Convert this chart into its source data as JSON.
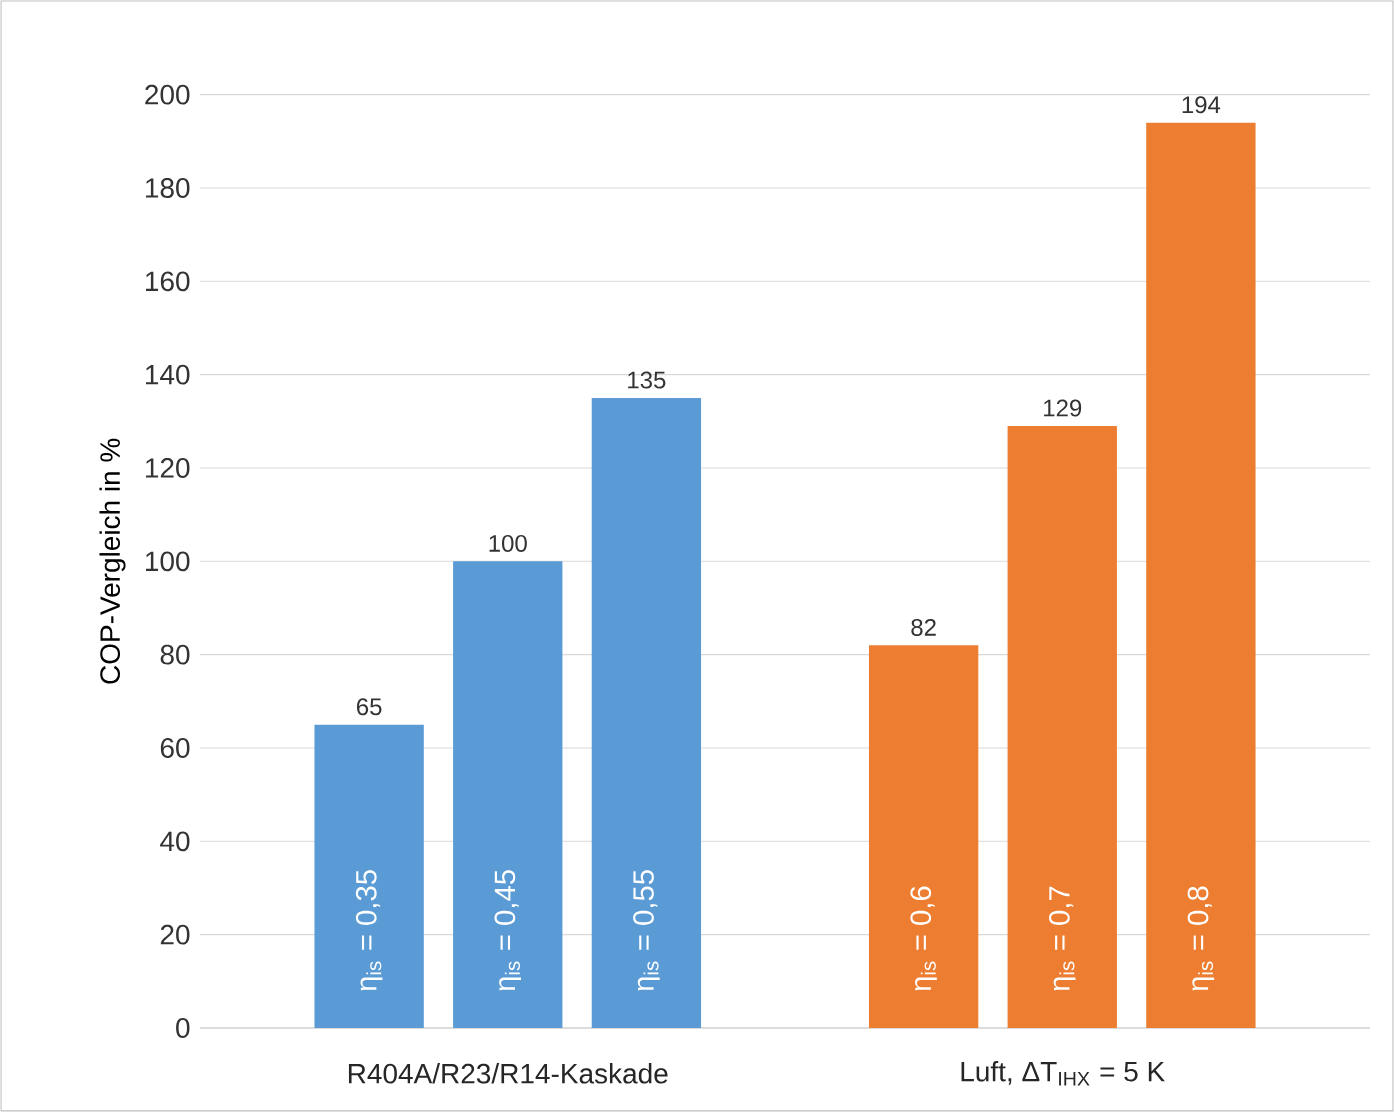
{
  "chart_data": {
    "type": "bar",
    "ylabel": "COP-Vergleich in %",
    "categories": [
      "η$_{is}$ = 0,35",
      "η$_{is}$ = 0,45",
      "η$_{is}$ = 0,55",
      null,
      "η$_{is}$ = 0,6",
      "η$_{is}$ = 0,7",
      "η$_{is}$ = 0,8"
    ],
    "values": [
      65,
      100,
      135,
      null,
      82,
      129,
      194
    ],
    "colors": [
      "#5b9bd5",
      "#5b9bd5",
      "#5b9bd5",
      null,
      "#ed7d31",
      "#ed7d31",
      "#ed7d31"
    ],
    "ylim": [
      0,
      200
    ],
    "yticks": [
      0,
      20,
      40,
      60,
      80,
      100,
      120,
      140,
      160,
      180,
      200
    ],
    "grid": "y",
    "data_labels": true,
    "annotations": [
      "R404A/R23/R14-Kaskade",
      "Luft, ΔT$_{IHX}$ = 5 K"
    ]
  }
}
